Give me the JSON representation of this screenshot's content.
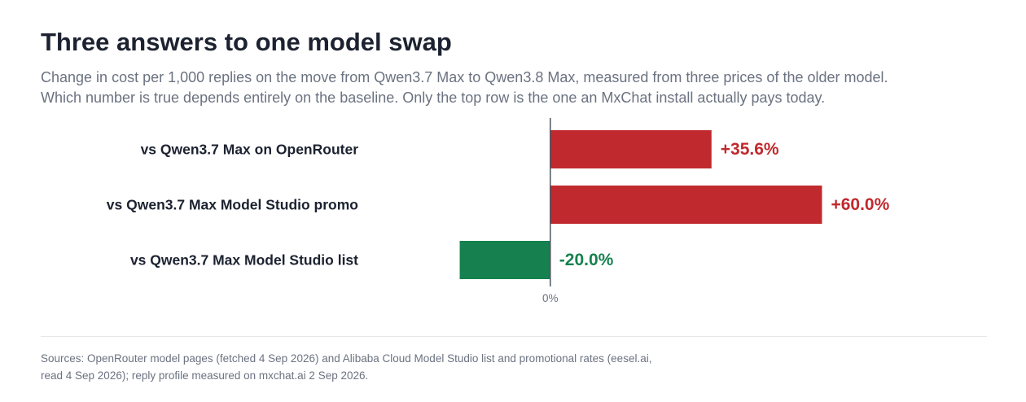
{
  "title": "Three answers to one model swap",
  "subtitle": [
    "Change in cost per 1,000 replies on the move from Qwen3.7 Max to Qwen3.8 Max, measured from three prices of the older model.",
    "Which number is true depends entirely on the baseline. Only the top row is the one an MxChat install actually pays today."
  ],
  "source": [
    "Sources: OpenRouter model pages (fetched 4 Sep 2026) and Alibaba Cloud Model Studio list and promotional rates (eesel.ai,",
    "read 4 Sep 2026); reply profile measured on mxchat.ai 2 Sep 2026."
  ],
  "colors": {
    "increase": "#c0292d",
    "decrease": "#16814f",
    "text": "#1c2230",
    "muted": "#6b7280"
  },
  "chart_data": {
    "type": "bar",
    "orientation": "horizontal",
    "unit": "%",
    "categories": [
      "vs Qwen3.7 Max on OpenRouter",
      "vs Qwen3.7 Max Model Studio promo",
      "vs Qwen3.7 Max Model Studio list"
    ],
    "values": [
      35.6,
      60.0,
      -20.0
    ],
    "data_labels": [
      "+35.6%",
      "+60.0%",
      "-20.0%"
    ],
    "zero_label": "0%",
    "xlim": [
      -37,
      93
    ],
    "grid": false,
    "legend": "none"
  }
}
